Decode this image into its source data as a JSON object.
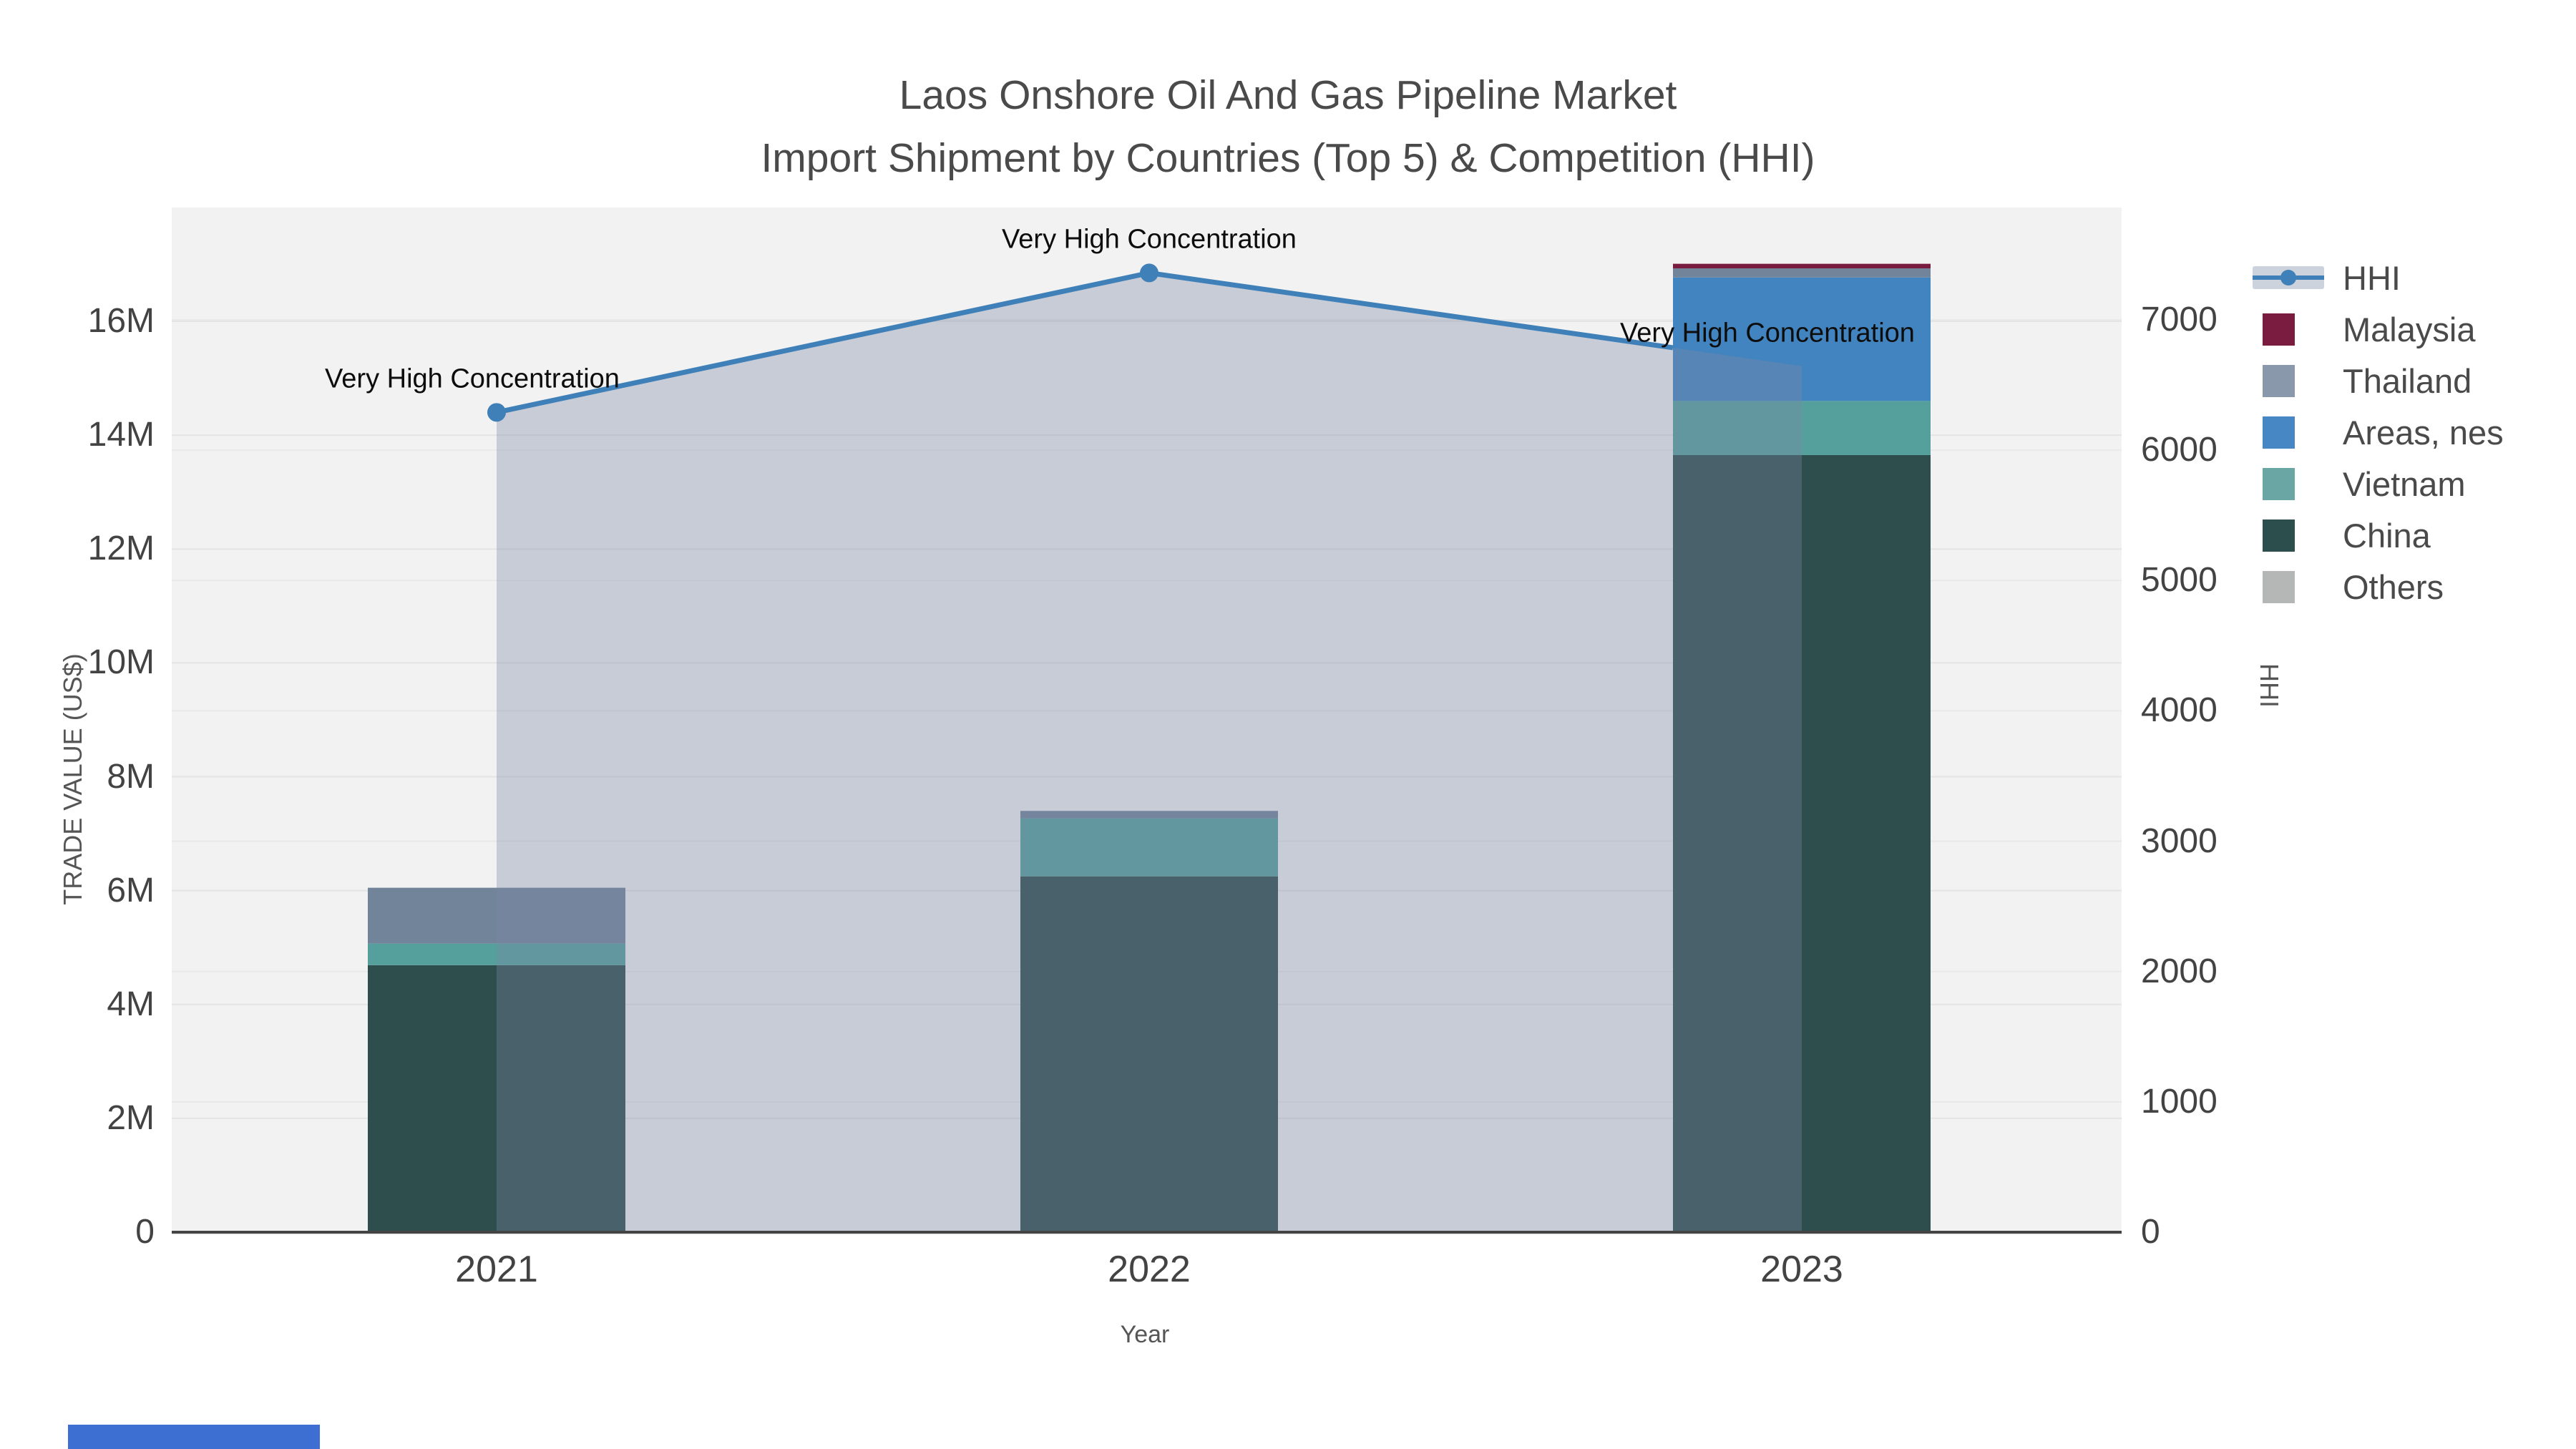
{
  "title": {
    "line1": "Laos Onshore Oil And Gas Pipeline Market",
    "line2": "Import Shipment by Countries (Top 5) & Competition (HHI)"
  },
  "chart_data": {
    "type": "combo: stacked-bar (left axis) + line with area fill (right axis)",
    "x_title": "Year",
    "categories": [
      "2021",
      "2022",
      "2023"
    ],
    "bar_unit": "millions US$",
    "bar_series": [
      {
        "name": "Malaysia",
        "color": "#7a1c40",
        "values": [
          0,
          0,
          0.08
        ]
      },
      {
        "name": "Thailand",
        "color": "#72849a",
        "values": [
          0.98,
          0.13,
          0.16
        ]
      },
      {
        "name": "Areas, nes",
        "color": "#4284bf",
        "values": [
          0,
          0,
          2.17
        ]
      },
      {
        "name": "Vietnam",
        "color": "#55a09c",
        "values": [
          0.38,
          1.02,
          0.95
        ]
      },
      {
        "name": "China",
        "color": "#2d4e4c",
        "values": [
          4.69,
          6.25,
          13.65
        ]
      },
      {
        "name": "Others",
        "color": "#b5b6b6",
        "values": [
          0,
          0,
          0
        ]
      }
    ],
    "stack_order_bottom_to_top": [
      "China",
      "Vietnam",
      "Areas, nes",
      "Thailand",
      "Malaysia",
      "Others"
    ],
    "line_series": {
      "name": "HHI",
      "color": "#4080b8",
      "area_fill": "rgba(122,136,165,0.35)",
      "values": [
        6290,
        7360,
        6645
      ]
    },
    "annotations": [
      "Very High Concentration",
      "Very High Concentration",
      "Very High Concentration"
    ],
    "y_left": {
      "title": "TRADE VALUE (US$)",
      "tick_values": [
        0,
        2,
        4,
        6,
        8,
        10,
        12,
        14,
        16
      ],
      "tick_labels": [
        "0",
        "2M",
        "4M",
        "6M",
        "8M",
        "10M",
        "12M",
        "14M",
        "16M"
      ],
      "range_millions": [
        0,
        18.05
      ]
    },
    "y_right": {
      "title": "HHI",
      "tick_values": [
        0,
        1000,
        2000,
        3000,
        4000,
        5000,
        6000,
        7000
      ],
      "tick_labels": [
        "0",
        "1000",
        "2000",
        "3000",
        "4000",
        "5000",
        "6000",
        "7000"
      ],
      "range": [
        0,
        7862
      ]
    },
    "grid": "horizontal gridlines for both y axes",
    "plot_background": "#f2f2f2",
    "axis_line_color": "#444444"
  },
  "legend": {
    "position": "right",
    "items": [
      {
        "label": "HHI",
        "type": "line",
        "color": "#4080b8"
      },
      {
        "label": "Malaysia",
        "type": "square",
        "color": "#7a1c40"
      },
      {
        "label": "Thailand",
        "type": "square",
        "color": "#8a98ab"
      },
      {
        "label": "Areas, nes",
        "type": "square",
        "color": "#4788c4"
      },
      {
        "label": "Vietnam",
        "type": "square",
        "color": "#6aa6a3"
      },
      {
        "label": "China",
        "type": "square",
        "color": "#2c4f4e"
      },
      {
        "label": "Others",
        "type": "square",
        "color": "#b5b6b6"
      }
    ]
  },
  "misc": {
    "bottom_strip_color": "#3d6fd2"
  }
}
